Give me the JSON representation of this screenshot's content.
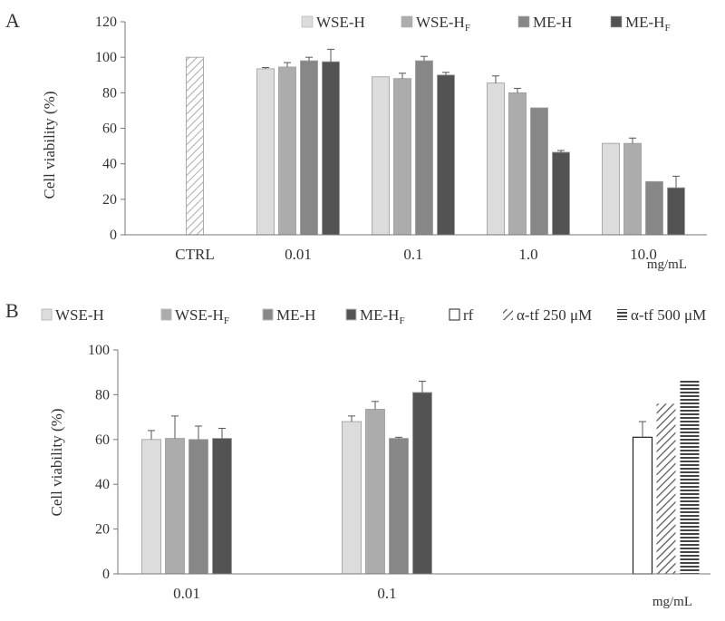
{
  "chart_data": [
    {
      "type": "bar",
      "panel_label": "A",
      "ylabel": "Cell viability (%)",
      "xlabel": "mg/mL",
      "ylim": [
        0,
        120
      ],
      "yticks": [
        0,
        20,
        40,
        60,
        80,
        100,
        120
      ],
      "legend_position": "top",
      "categories": [
        "CTRL",
        "0.01",
        "0.1",
        "1.0",
        "10.0"
      ],
      "series": [
        {
          "name": "CTRL",
          "legend": false,
          "color": "#ffffff",
          "pattern": "diag",
          "values": [
            100,
            null,
            null,
            null,
            null
          ],
          "errors": [
            0,
            null,
            null,
            null,
            null
          ]
        },
        {
          "name": "WSE-H",
          "legend": true,
          "color": "#dcdcdc",
          "values": [
            null,
            93.5,
            89,
            85.5,
            51.5
          ],
          "errors": [
            null,
            0.7,
            0,
            4,
            0
          ]
        },
        {
          "name": "WSE-H",
          "sub": "F",
          "legend": true,
          "color": "#acacac",
          "values": [
            null,
            94.5,
            88,
            80,
            51.5
          ],
          "errors": [
            null,
            2.5,
            3,
            2.5,
            3
          ]
        },
        {
          "name": "ME-H",
          "legend": true,
          "color": "#878787",
          "values": [
            null,
            98,
            98,
            71.5,
            30
          ],
          "errors": [
            null,
            2,
            2.5,
            0,
            0
          ]
        },
        {
          "name": "ME-H",
          "sub": "F",
          "legend": true,
          "color": "#535353",
          "values": [
            null,
            97.5,
            90,
            46.5,
            26.5
          ],
          "errors": [
            null,
            7,
            1.5,
            1,
            6.5
          ]
        }
      ]
    },
    {
      "type": "bar",
      "panel_label": "B",
      "ylabel": "Cell viability  (%)",
      "xlabel": "mg/mL",
      "ylim": [
        0,
        100
      ],
      "yticks": [
        0,
        20,
        40,
        60,
        80,
        100
      ],
      "legend_position": "top",
      "categories": [
        "0.01",
        "0.1",
        ""
      ],
      "series": [
        {
          "name": "WSE-H",
          "color": "#dcdcdc",
          "values": [
            60,
            68,
            null
          ],
          "errors": [
            4,
            2.5,
            null
          ]
        },
        {
          "name": "WSE-H",
          "sub": "F",
          "color": "#acacac",
          "values": [
            60.5,
            73.5,
            null
          ],
          "errors": [
            10,
            3.5,
            null
          ]
        },
        {
          "name": "ME-H",
          "color": "#878787",
          "values": [
            60,
            60.5,
            null
          ],
          "errors": [
            6,
            0.5,
            null
          ]
        },
        {
          "name": "ME-H",
          "sub": "F",
          "color": "#535353",
          "values": [
            60.5,
            81,
            null
          ],
          "errors": [
            4.5,
            5,
            null
          ]
        },
        {
          "name": "rf",
          "color": "#ffffff",
          "values": [
            null,
            null,
            61
          ],
          "errors": [
            null,
            null,
            7
          ]
        },
        {
          "name": "α-tf 250 μM",
          "color": "#ffffff",
          "pattern": "diag",
          "values": [
            null,
            null,
            76
          ],
          "errors": [
            null,
            null,
            0
          ]
        },
        {
          "name": "α-tf 500 μM",
          "color": "#ffffff",
          "pattern": "horiz",
          "values": [
            null,
            null,
            87
          ],
          "errors": [
            null,
            null,
            0
          ]
        }
      ]
    }
  ]
}
